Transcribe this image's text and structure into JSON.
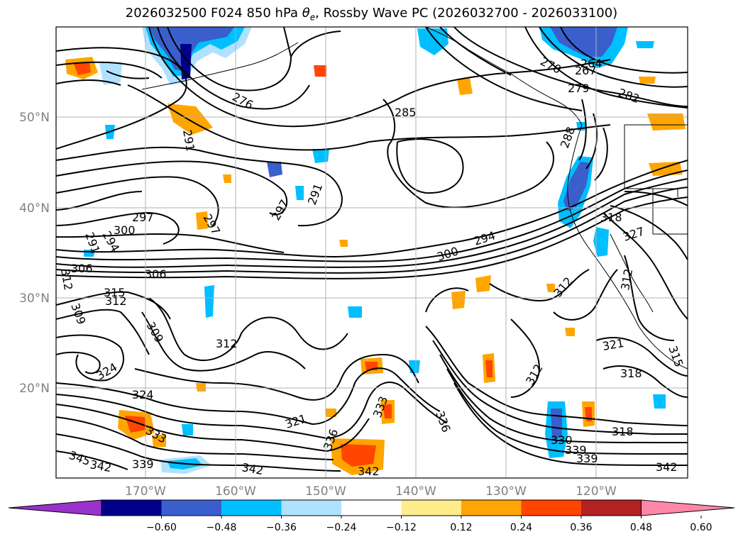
{
  "title_parts": {
    "prefix": "2026032500 F024 850 hPa ",
    "theta": "θ",
    "theta_sub": "e",
    "suffix": ", Rossby Wave PC (2026032700 - 2026033100)"
  },
  "axes": {
    "lat_labels": [
      "50°N",
      "40°N",
      "30°N",
      "20°N"
    ],
    "lon_labels": [
      "170°W",
      "160°W",
      "150°W",
      "140°W",
      "130°W",
      "120°W"
    ]
  },
  "colorbar": {
    "colors": [
      "#9932cc",
      "#00008b",
      "#3a5fcd",
      "#00bfff",
      "#b0e2ff",
      "#ffffff",
      "#ffec8b",
      "#ffa500",
      "#ff4500",
      "#b22222",
      "#ff88aa"
    ],
    "ticks": [
      "−0.60",
      "−0.48",
      "−0.36",
      "−0.24",
      "−0.12",
      "0.12",
      "0.24",
      "0.36",
      "0.48",
      "0.60"
    ],
    "extend": "both"
  },
  "contour_labels": [
    "276",
    "270",
    "267",
    "264",
    "279",
    "282",
    "285",
    "288",
    "291",
    "291",
    "291",
    "294",
    "294",
    "297",
    "297",
    "297",
    "300",
    "300",
    "306",
    "306",
    "309",
    "309",
    "312",
    "312",
    "312",
    "312",
    "312",
    "312",
    "315",
    "315",
    "318",
    "318",
    "318",
    "321",
    "321",
    "324",
    "324",
    "327",
    "330",
    "333",
    "333",
    "336",
    "336",
    "339",
    "339",
    "339",
    "342",
    "342",
    "342",
    "342",
    "345"
  ]
}
